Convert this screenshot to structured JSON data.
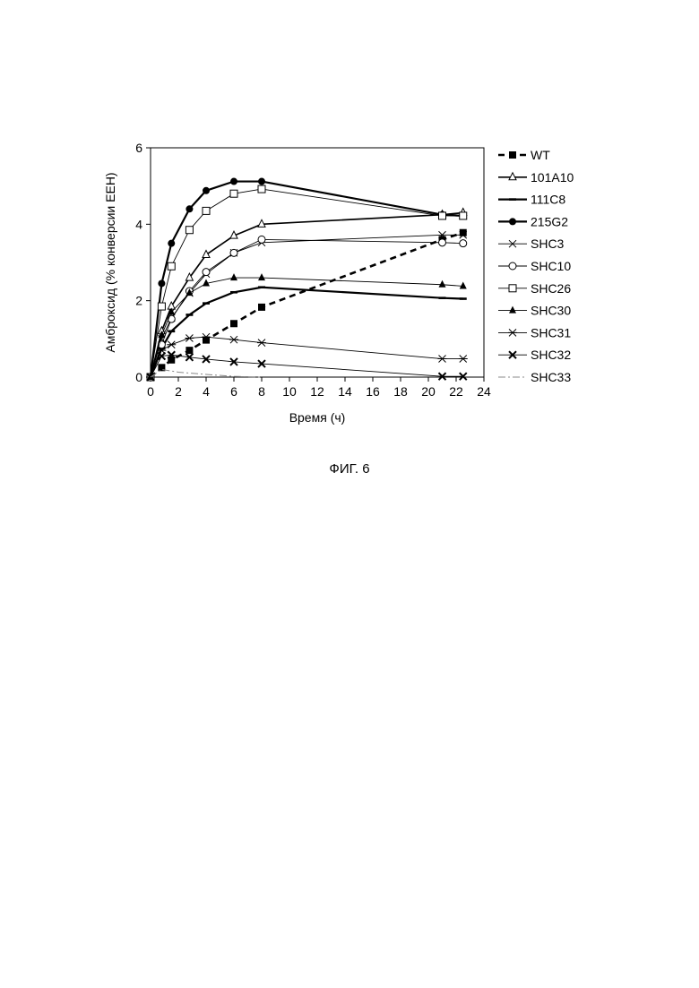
{
  "figure": {
    "caption": "ФИГ. 6"
  },
  "chart_data": {
    "type": "line",
    "title": "",
    "xlabel": "Время (ч)",
    "ylabel": "Амброксид (% конверсии ЕЕН)",
    "xlim": [
      0,
      24
    ],
    "ylim": [
      0,
      6
    ],
    "xticks": [
      0,
      2,
      4,
      6,
      8,
      10,
      12,
      14,
      16,
      18,
      20,
      22,
      24
    ],
    "yticks": [
      0,
      2,
      4,
      6
    ],
    "grid": false,
    "legend_position": "right",
    "series": [
      {
        "name": "WT",
        "marker": "filled-square",
        "line": "dashed-bold",
        "color": "#000000",
        "x": [
          0,
          0.8,
          1.5,
          2.8,
          4,
          6,
          8,
          21,
          22.5
        ],
        "y": [
          0,
          0.25,
          0.45,
          0.7,
          0.97,
          1.4,
          1.83,
          3.6,
          3.78
        ]
      },
      {
        "name": "101A10",
        "marker": "open-triangle",
        "line": "solid-medium",
        "color": "#000000",
        "x": [
          0,
          0.8,
          1.5,
          2.8,
          4,
          6,
          8,
          21,
          22.5
        ],
        "y": [
          0,
          1.2,
          1.85,
          2.6,
          3.2,
          3.7,
          4.0,
          4.25,
          4.3
        ]
      },
      {
        "name": "111C8",
        "marker": "dash",
        "line": "solid-bold",
        "color": "#000000",
        "x": [
          0,
          0.8,
          1.5,
          2.8,
          4,
          6,
          8,
          21,
          22.5
        ],
        "y": [
          0,
          0.75,
          1.2,
          1.63,
          1.93,
          2.22,
          2.35,
          2.07,
          2.05
        ]
      },
      {
        "name": "215G2",
        "marker": "filled-circle",
        "line": "solid-bold",
        "color": "#000000",
        "x": [
          0,
          0.8,
          1.5,
          2.8,
          4,
          6,
          8,
          21,
          22.5
        ],
        "y": [
          0,
          2.45,
          3.5,
          4.4,
          4.88,
          5.12,
          5.12,
          4.25,
          4.22
        ]
      },
      {
        "name": "SHC3",
        "marker": "x",
        "line": "solid-thin",
        "color": "#000000",
        "x": [
          0,
          0.8,
          1.5,
          2.8,
          4,
          6,
          8,
          21,
          22.5
        ],
        "y": [
          0,
          1.0,
          1.55,
          2.2,
          2.7,
          3.25,
          3.52,
          3.72,
          3.72
        ]
      },
      {
        "name": "SHC10",
        "marker": "open-circle",
        "line": "solid-thin",
        "color": "#000000",
        "x": [
          0,
          0.8,
          1.5,
          2.8,
          4,
          6,
          8,
          21,
          22.5
        ],
        "y": [
          0,
          0.85,
          1.52,
          2.25,
          2.75,
          3.25,
          3.6,
          3.52,
          3.5
        ]
      },
      {
        "name": "SHC26",
        "marker": "open-square",
        "line": "solid-thin",
        "color": "#000000",
        "x": [
          0,
          0.8,
          1.5,
          2.8,
          4,
          6,
          8,
          21,
          22.5
        ],
        "y": [
          0,
          1.85,
          2.9,
          3.85,
          4.35,
          4.8,
          4.92,
          4.22,
          4.22
        ]
      },
      {
        "name": "SHC30",
        "marker": "filled-triangle",
        "line": "solid-thin",
        "color": "#000000",
        "x": [
          0,
          0.8,
          1.5,
          2.8,
          4,
          6,
          8,
          21,
          22.5
        ],
        "y": [
          0,
          1.1,
          1.7,
          2.2,
          2.45,
          2.6,
          2.6,
          2.42,
          2.38
        ]
      },
      {
        "name": "SHC31",
        "marker": "asterisk",
        "line": "solid-thin",
        "color": "#000000",
        "x": [
          0,
          0.8,
          1.5,
          2.8,
          4,
          6,
          8,
          21,
          22.5
        ],
        "y": [
          0,
          0.7,
          0.85,
          1.02,
          1.05,
          0.98,
          0.9,
          0.48,
          0.48
        ]
      },
      {
        "name": "SHC32",
        "marker": "x-bold",
        "line": "solid-thin",
        "color": "#000000",
        "x": [
          0,
          0.8,
          1.5,
          2.8,
          4,
          6,
          8,
          21,
          22.5
        ],
        "y": [
          0,
          0.55,
          0.58,
          0.52,
          0.47,
          0.4,
          0.35,
          0.02,
          0.02
        ]
      },
      {
        "name": "SHC33",
        "marker": "none",
        "line": "dash-dot",
        "color": "#888888",
        "x": [
          0,
          0.8,
          2,
          4,
          6,
          8
        ],
        "y": [
          0,
          0.2,
          0.13,
          0.07,
          0.02,
          0
        ]
      }
    ]
  }
}
